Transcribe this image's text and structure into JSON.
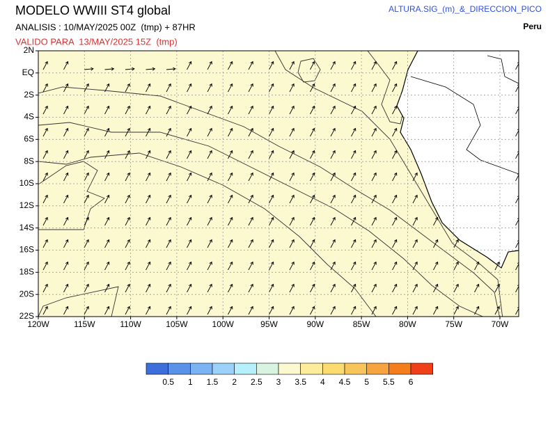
{
  "header": {
    "title": "MODELO WWIII ST4 global",
    "analysis": "ANALISIS : 10/MAY/2025 00Z  (tmp) + 87HR",
    "valid": "VALIDO PARA  13/MAY/2025 15Z  (tmp)",
    "variable": "ALTURA.SIG_(m)_&_DIRECCION_PICO",
    "region": "Peru"
  },
  "map": {
    "lat_labels": [
      "2N",
      "EQ",
      "2S",
      "4S",
      "6S",
      "8S",
      "10S",
      "12S",
      "14S",
      "16S",
      "18S",
      "20S",
      "22S"
    ],
    "lon_labels": [
      "120W",
      "115W",
      "110W",
      "105W",
      "100W",
      "95W",
      "90W",
      "85W",
      "80W",
      "75W",
      "70W"
    ]
  },
  "colorbar": {
    "labels": [
      0.5,
      1,
      1.5,
      2,
      2.5,
      3,
      3.5,
      4,
      4.5,
      5,
      5.5,
      6
    ],
    "colors": [
      "#3c6fdc",
      "#5a92ea",
      "#7ab4f4",
      "#9cd2fa",
      "#b6f0fc",
      "#d8f4e0",
      "#fcf8d0",
      "#fcec9c",
      "#fcdc70",
      "#f8c45c",
      "#f6a440",
      "#f47e1c",
      "#f0401a"
    ]
  }
}
